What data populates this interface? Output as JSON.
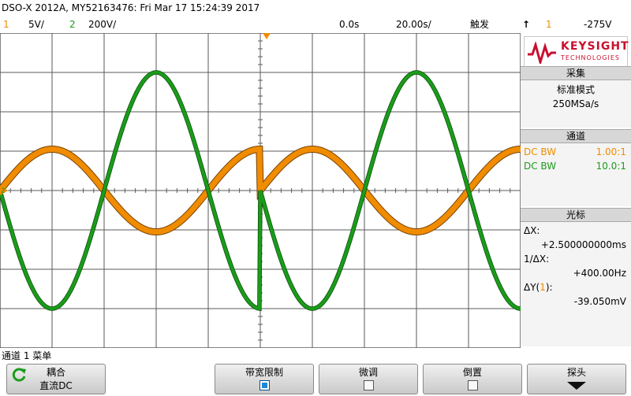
{
  "header": {
    "title": "DSO-X 2012A, MY52163476: Fri Mar 17 15:24:39 2017"
  },
  "status": {
    "ch1_num": "1",
    "ch1_scale": "5V/",
    "ch2_num": "2",
    "ch2_scale": "200V/",
    "time_offset": "0.0s",
    "time_scale": "20.00s/",
    "trigger_label": "触发",
    "trigger_icon": "rising-edge-icon",
    "trigger_channel": "1",
    "trigger_level": "-275V"
  },
  "graticule": {
    "ground_marker_label": "2",
    "trigger_marker": "T"
  },
  "logo": {
    "brand": "KEYSIGHT",
    "sub": "TECHNOLOGIES"
  },
  "acquisition": {
    "header": "采集",
    "mode": "标准模式",
    "rate": "250MSa/s"
  },
  "channels": {
    "header": "通道",
    "items": [
      {
        "coupling": "DC BW",
        "probe": "1.00:1",
        "color": "#f08c00"
      },
      {
        "coupling": "DC BW",
        "probe": "10.0:1",
        "color": "#1a9c1a"
      }
    ]
  },
  "cursors": {
    "header": "光标",
    "dx_label": "ΔX:",
    "dx_value": "+2.500000000ms",
    "inv_dx_label": "1/ΔX:",
    "inv_dx_value": "+400.00Hz",
    "dy_label_prefix": "ΔY(",
    "dy_label_channel": "1",
    "dy_label_suffix": "):",
    "dy_value": "-39.050mV"
  },
  "menu": {
    "title": "通道 1 菜单",
    "softkeys": [
      {
        "label": "耦合",
        "value": "直流DC",
        "icon": "refresh-icon"
      },
      {
        "label": "带宽限制",
        "checked": true
      },
      {
        "label": "微调",
        "checked": false
      },
      {
        "label": "倒置",
        "checked": false
      },
      {
        "label": "探头",
        "icon": "down-arrow-icon"
      }
    ]
  },
  "chart_data": {
    "type": "line",
    "x": [
      -100,
      -80,
      -60,
      -40,
      -20,
      0,
      20,
      40,
      60,
      80,
      100
    ],
    "series": [
      {
        "values": [
          0,
          1.05,
          0,
          -1.05,
          0,
          0,
          1.05,
          0,
          -1.05,
          0,
          0
        ],
        "color": "#f08c00"
      },
      {
        "values": [
          0,
          -3.0,
          0,
          3.0,
          0,
          0,
          -3.0,
          0,
          3.0,
          0,
          0
        ],
        "color": "#1a9c1a"
      }
    ],
    "xlim": [
      -100,
      100
    ],
    "ylim": [
      -4,
      4
    ],
    "grid": true
  }
}
